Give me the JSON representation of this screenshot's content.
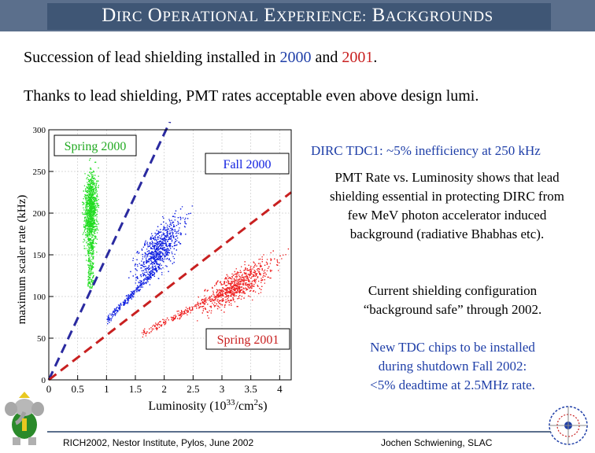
{
  "slide": {
    "title": {
      "word1_cap": "D",
      "word1_rest": "IRC",
      "word2_cap": "O",
      "word2_rest": "PERATIONAL",
      "word3_cap": "E",
      "word3_rest": "XPERIENCE:",
      "word4_cap": "B",
      "word4_rest": "ACKGROUNDS"
    },
    "bullet1": {
      "prefix": "Succession of lead shielding installed in ",
      "year1": "2000",
      "middle": " and ",
      "year2": "2001",
      "suffix": "."
    },
    "bullet2": "Thanks to lead shielding, PMT rates acceptable even above design lumi.",
    "right": {
      "tdc1": "DIRC TDC1: ~5% inefficiency at 250 kHz",
      "pmt_line1": "PMT Rate vs. Luminosity shows that lead",
      "pmt_line2": "shielding essential in protecting DIRC from",
      "pmt_line3": "few MeV photon accelerator induced",
      "pmt_line4": "background (radiative Bhabhas etc).",
      "current_line1": "Current shielding configuration",
      "current_line2": "“background safe” through 2002.",
      "newtdc_line1": "New TDC chips to be installed",
      "newtdc_line2": "during shutdown Fall 2002:",
      "newtdc_line3": "<5% deadtime at 2.5MHz rate."
    },
    "footer": {
      "left": "RICH2002, Nestor Institute, Pylos, June 2002",
      "right": "Jochen Schwiening, SLAC"
    }
  },
  "chart_data": {
    "type": "scatter",
    "title": "",
    "xlabel": "Luminosity (10",
    "xlabel_exp": "33",
    "xlabel_unit": "/cm",
    "xlabel_unit_exp": "2",
    "xlabel_end": "s)",
    "ylabel": "maximum scaler rate (kHz)",
    "xlim": [
      0,
      4.2
    ],
    "ylim": [
      0,
      300
    ],
    "x_ticks": [
      0,
      0.5,
      1,
      1.5,
      2,
      2.5,
      3,
      3.5,
      4
    ],
    "x_tick_labels": [
      "0",
      "0.5",
      "1",
      "1.5",
      "2",
      "2.5",
      "3",
      "3.5",
      "4"
    ],
    "y_ticks": [
      0,
      50,
      100,
      150,
      200,
      250,
      300
    ],
    "y_tick_labels": [
      "0",
      "50",
      "100",
      "150",
      "200",
      "250",
      "300"
    ],
    "series": [
      {
        "name": "Spring 2000",
        "color": "#22dd22",
        "x_center": 0.72,
        "y_center": 205,
        "x_spread": 0.09,
        "y_spread": 38,
        "slope": 1.0
      },
      {
        "name": "Fall 2000",
        "color": "#1020e0",
        "x_center": 1.92,
        "y_center": 158,
        "x_spread": 0.33,
        "y_spread": 22,
        "slope": 0.75
      },
      {
        "name": "Spring 2001",
        "color": "#ee2020",
        "x_center": 3.3,
        "y_center": 115,
        "x_spread": 0.5,
        "y_spread": 16,
        "slope": 0.55
      }
    ],
    "trend_lines": [
      {
        "color": "#2a2aa0",
        "x0": 0,
        "y0": 0,
        "x1": 2.1,
        "y1": 310
      },
      {
        "color": "#c82020",
        "x0": 0,
        "y0": 0,
        "x1": 4.2,
        "y1": 225
      }
    ],
    "grid": true
  }
}
